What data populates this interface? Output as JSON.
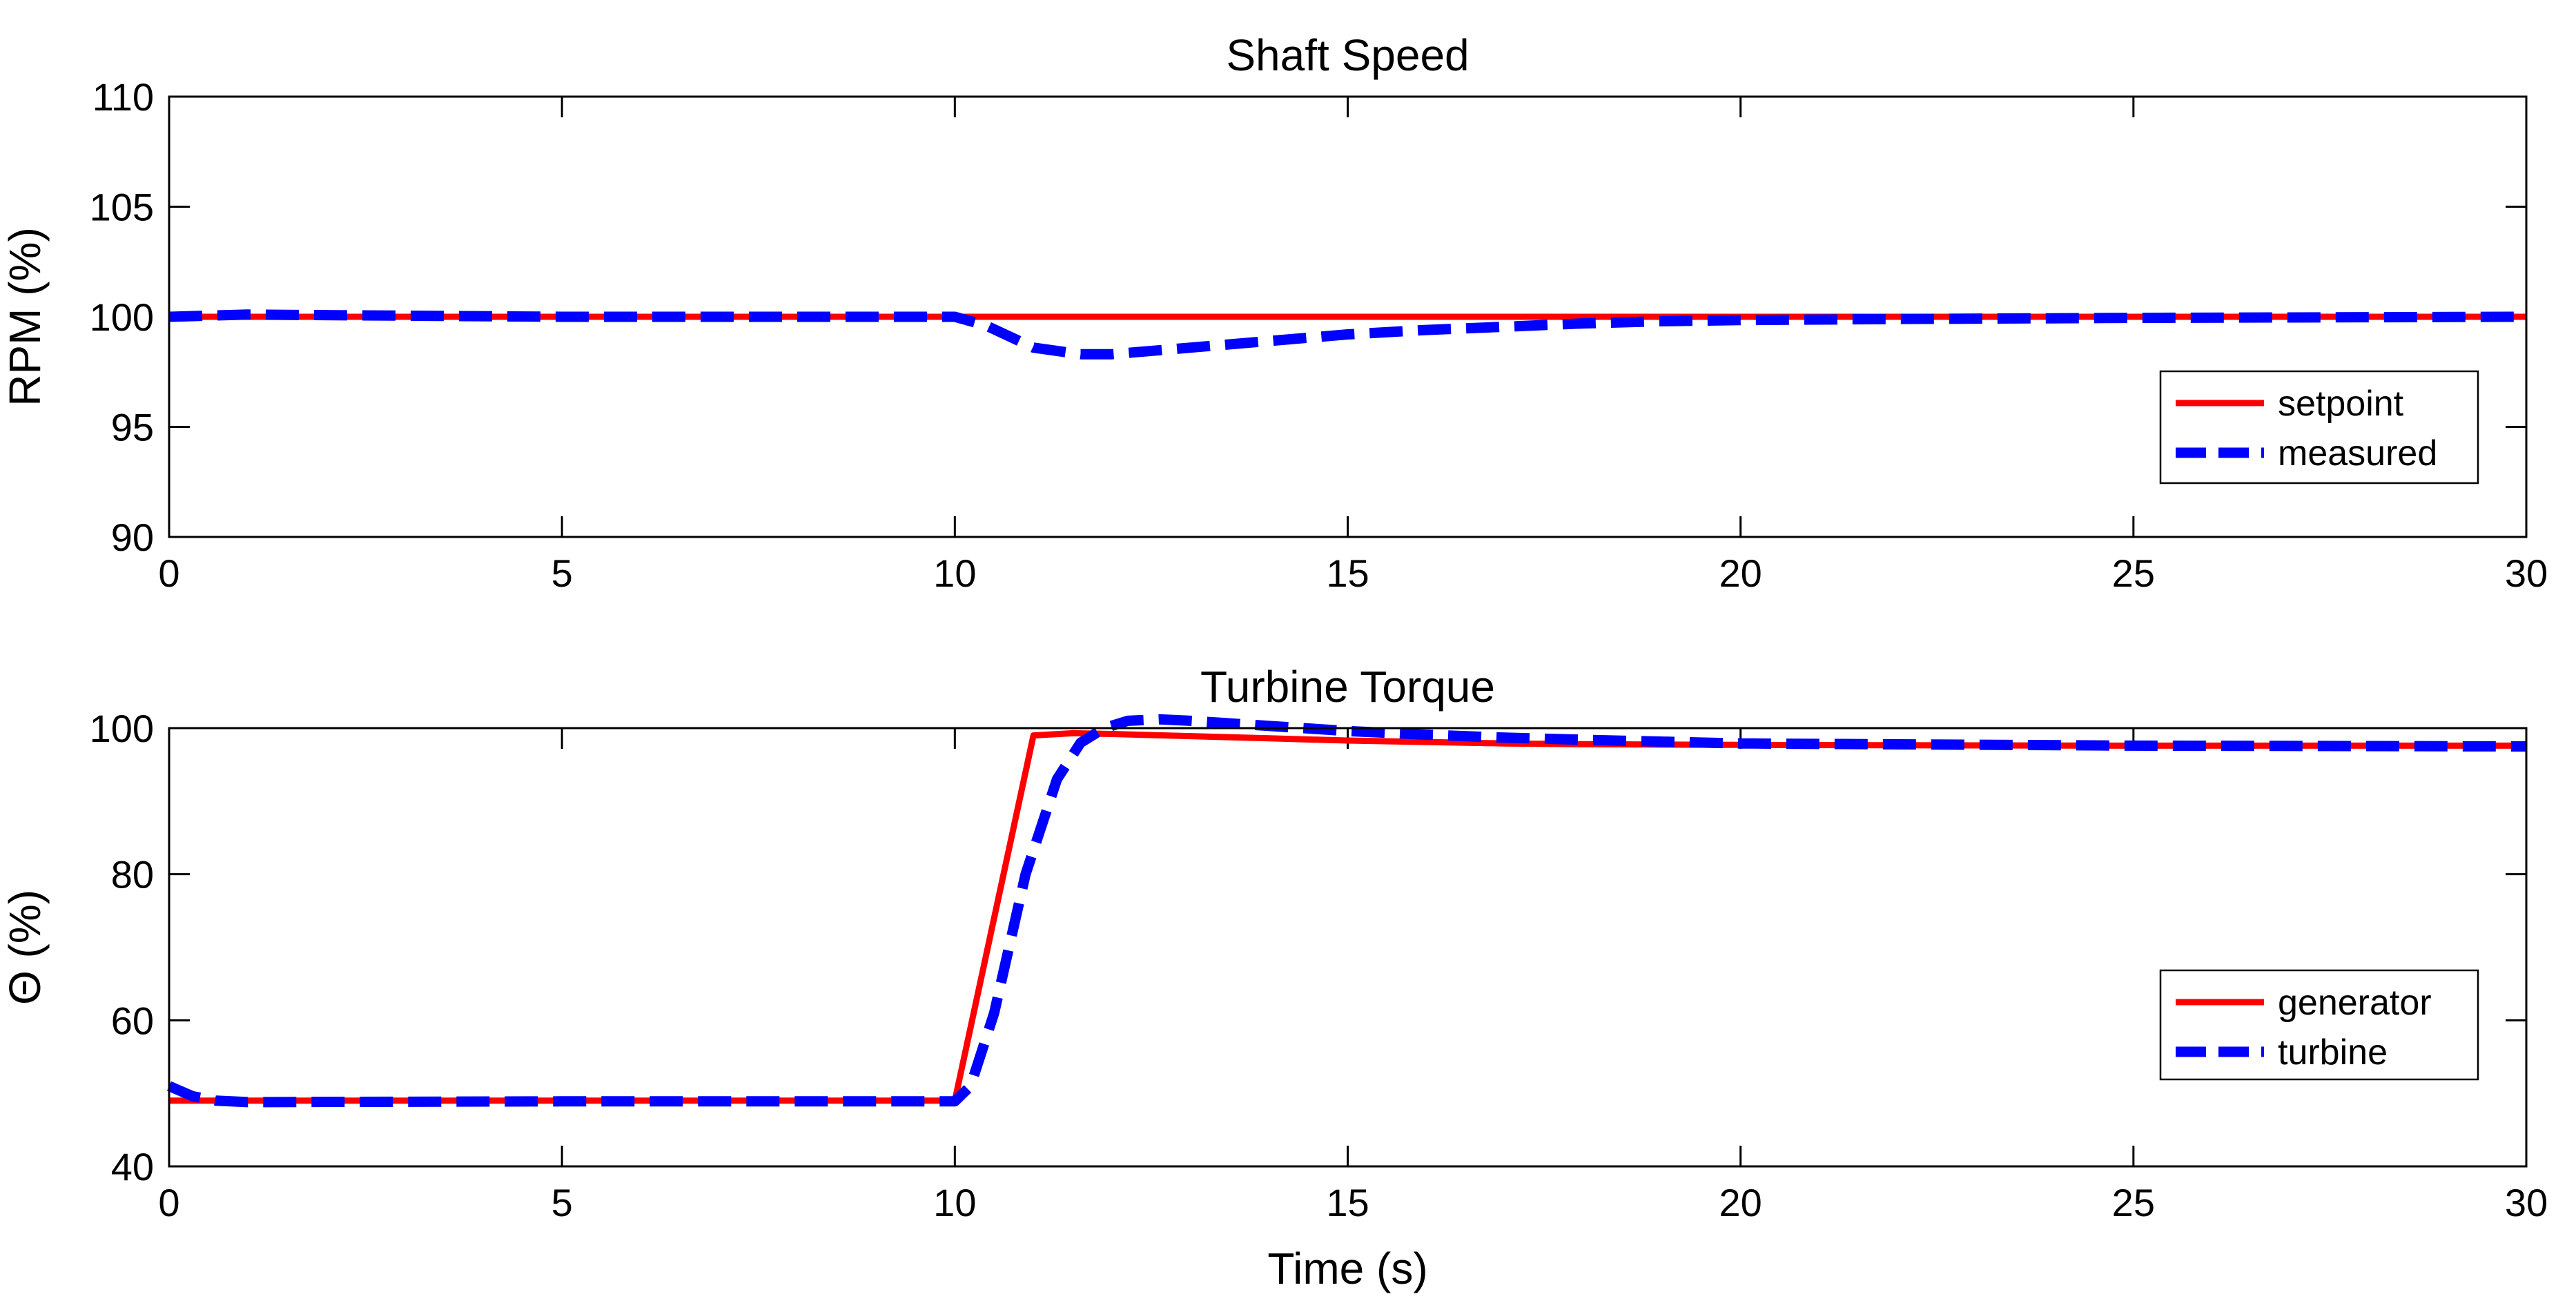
{
  "chart_data": [
    {
      "type": "line",
      "title": "Shaft Speed",
      "xlabel": "",
      "ylabel": "RPM (%)",
      "xlim": [
        0,
        30
      ],
      "ylim": [
        90,
        110
      ],
      "xticks": [
        "0",
        "5",
        "10",
        "15",
        "20",
        "25",
        "30"
      ],
      "yticks": [
        "90",
        "95",
        "100",
        "105",
        "110"
      ],
      "grid": false,
      "legend_position": "right-lower",
      "series": [
        {
          "name": "setpoint",
          "color": "#ff0000",
          "style": "solid",
          "x": [
            0,
            30
          ],
          "y": [
            100,
            100
          ]
        },
        {
          "name": "measured",
          "color": "#0000ff",
          "style": "dashed",
          "x": [
            0,
            1,
            5,
            10,
            10.4,
            11,
            11.6,
            12,
            13,
            14,
            15,
            16,
            17,
            18,
            19,
            20,
            22,
            25,
            30
          ],
          "y": [
            100,
            100.1,
            100,
            100,
            99.6,
            98.6,
            98.3,
            98.3,
            98.6,
            98.9,
            99.2,
            99.4,
            99.55,
            99.7,
            99.8,
            99.85,
            99.9,
            99.95,
            100
          ]
        }
      ]
    },
    {
      "type": "line",
      "title": "Turbine Torque",
      "xlabel": "Time (s)",
      "ylabel": "Θ (%)",
      "xlim": [
        0,
        30
      ],
      "ylim": [
        40,
        100
      ],
      "xticks": [
        "0",
        "5",
        "10",
        "15",
        "20",
        "25",
        "30"
      ],
      "yticks": [
        "40",
        "60",
        "80",
        "100"
      ],
      "grid": false,
      "legend_position": "right-lower",
      "series": [
        {
          "name": "generator",
          "color": "#ff0000",
          "style": "solid",
          "x": [
            0,
            10,
            11,
            11.5,
            12,
            13,
            14,
            15,
            16,
            17,
            18,
            20,
            25,
            30
          ],
          "y": [
            49,
            49,
            99,
            99.3,
            99.2,
            98.9,
            98.6,
            98.3,
            98.1,
            97.9,
            97.8,
            97.7,
            97.6,
            97.6
          ]
        },
        {
          "name": "turbine",
          "color": "#0000ff",
          "style": "dashed",
          "x": [
            0,
            0.3,
            0.6,
            1,
            5,
            10,
            10.2,
            10.5,
            10.9,
            11.3,
            11.6,
            11.9,
            12.2,
            12.6,
            13,
            14,
            15,
            16,
            17,
            18,
            20,
            25,
            30
          ],
          "y": [
            51,
            49.6,
            49,
            48.8,
            48.9,
            48.9,
            51,
            61,
            80,
            93,
            98,
            100,
            101,
            101.2,
            101,
            100.3,
            99.6,
            99.1,
            98.7,
            98.4,
            97.9,
            97.6,
            97.5
          ]
        }
      ]
    }
  ]
}
